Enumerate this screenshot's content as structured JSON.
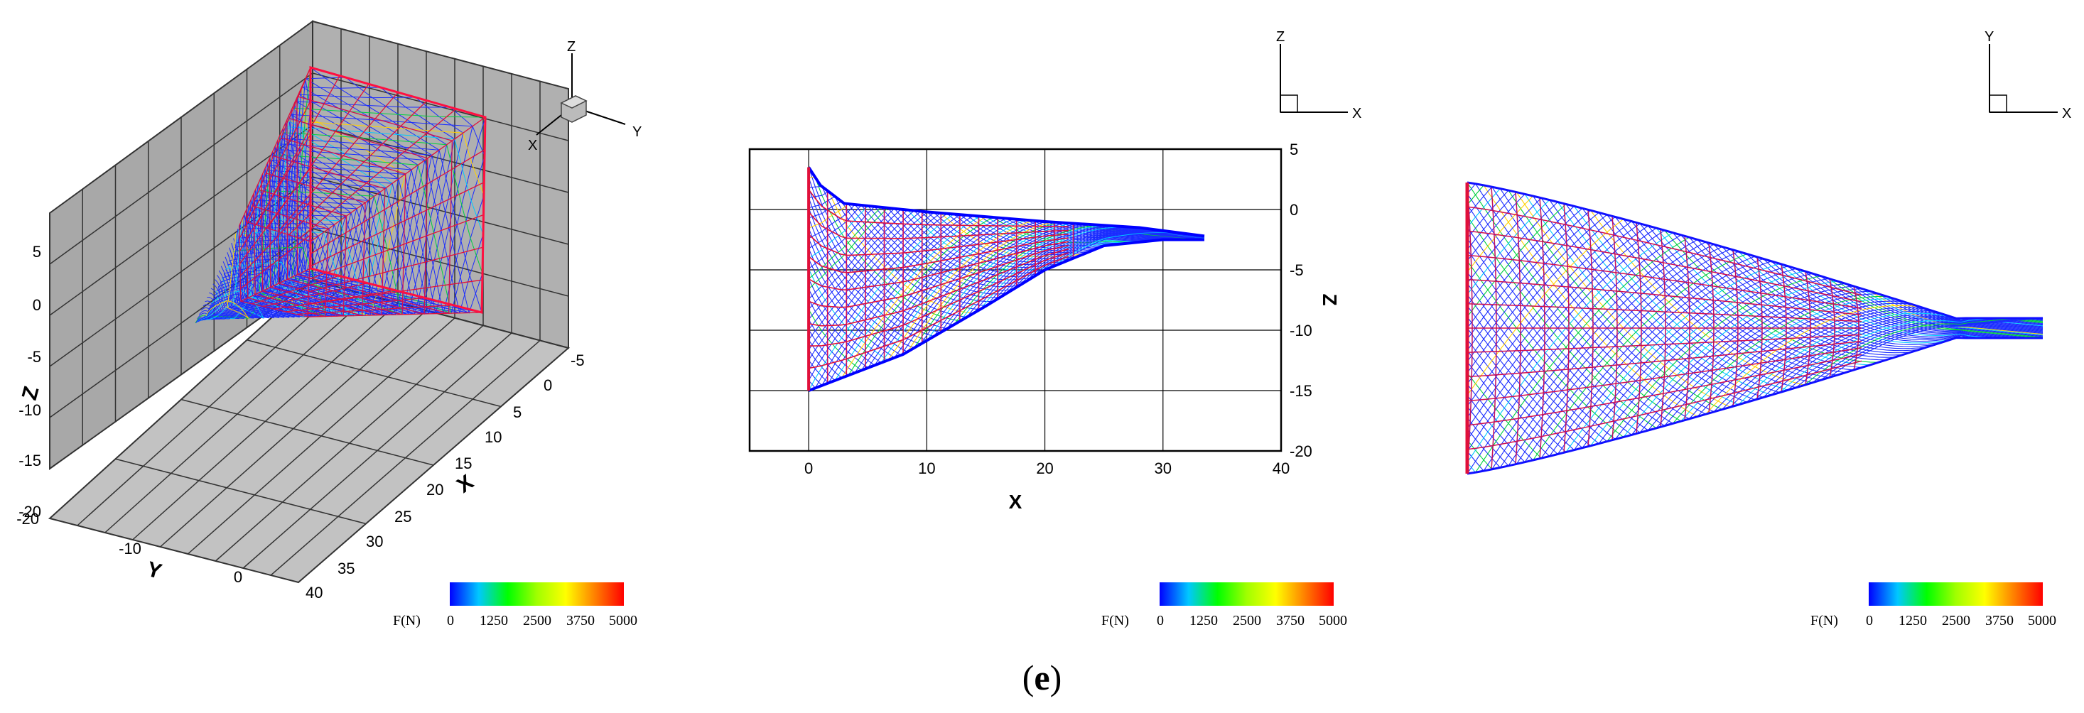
{
  "caption": {
    "open": "(",
    "letter": "e",
    "close": ")"
  },
  "colorbar": {
    "label": "F(N)",
    "ticks": [
      "0",
      "1250",
      "2500",
      "3750",
      "5000"
    ],
    "min": 0,
    "max": 5000,
    "stops": [
      "#0000ff",
      "#00c8ff",
      "#00ff00",
      "#a0ff00",
      "#ffff00",
      "#ff8000",
      "#ff0000"
    ]
  },
  "chart_data": [
    {
      "type": "scatter",
      "view": "3D perspective",
      "axes": {
        "x": {
          "label": "X",
          "ticks": [
            "-5",
            "0",
            "5",
            "10",
            "15",
            "20",
            "25",
            "30",
            "35",
            "40"
          ],
          "range": [
            -5,
            40
          ]
        },
        "y": {
          "label": "Y",
          "ticks": [
            "-10",
            "0",
            "-20"
          ],
          "range": [
            -20,
            0
          ]
        },
        "z": {
          "label": "Z",
          "ticks": [
            "5",
            "0",
            "-5",
            "-10",
            "-15",
            "-20"
          ],
          "range": [
            -20,
            5
          ]
        }
      },
      "triad": [
        "Z",
        "Y",
        "X"
      ]
    },
    {
      "type": "line",
      "view": "XZ side",
      "axes": {
        "x": {
          "label": "X",
          "ticks": [
            "0",
            "10",
            "20",
            "30",
            "40"
          ],
          "range": [
            -5,
            40
          ]
        },
        "y": {
          "label": "Z",
          "ticks": [
            "5",
            "0",
            "-5",
            "-10",
            "-15",
            "-20"
          ],
          "range": [
            -20,
            5
          ]
        }
      },
      "grid": true,
      "outline_top": [
        [
          0,
          3.5
        ],
        [
          1,
          2
        ],
        [
          3,
          0.5
        ],
        [
          10,
          -0.2
        ],
        [
          20,
          -1
        ],
        [
          28,
          -1.5
        ],
        [
          33.5,
          -2.2
        ]
      ],
      "outline_bottom": [
        [
          0,
          -15
        ],
        [
          8,
          -12
        ],
        [
          15,
          -8
        ],
        [
          20,
          -5
        ],
        [
          25,
          -3
        ],
        [
          30,
          -2.5
        ],
        [
          33.5,
          -2.5
        ]
      ],
      "triad": [
        "Z",
        "X"
      ]
    },
    {
      "type": "line",
      "view": "XY top",
      "triad": [
        "Y",
        "X"
      ]
    }
  ]
}
